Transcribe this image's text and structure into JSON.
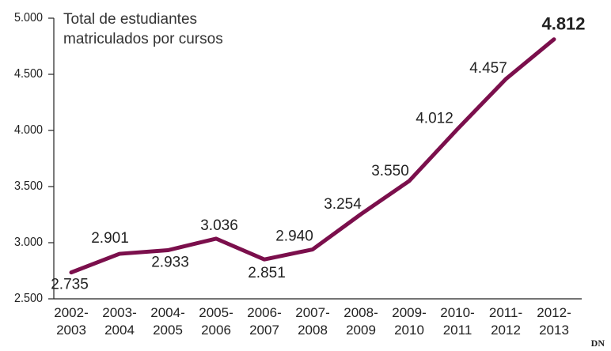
{
  "chart_data": {
    "type": "line",
    "subtitle": "Total de estudiantes\nmatriculados por cursos",
    "credit": "DN",
    "categories": [
      "2002-\n2003",
      "2003-\n2004",
      "2004-\n2005",
      "2005-\n2006",
      "2006-\n2007",
      "2007-\n2008",
      "2008-\n2009",
      "2009-\n2010",
      "2010-\n2011",
      "2011-\n2012",
      "2012-\n2013"
    ],
    "series": [
      {
        "name": "Total de estudiantes matriculados",
        "color": "#7b0f4c",
        "values": [
          2735,
          2901,
          2933,
          3036,
          2851,
          2940,
          3254,
          3550,
          4012,
          4457,
          4812
        ],
        "value_labels": [
          "2.735",
          "2.901",
          "2.933",
          "3.036",
          "2.851",
          "2.940",
          "3.254",
          "3.550",
          "4.012",
          "4.457",
          "4.812"
        ]
      }
    ],
    "ylim": [
      2500,
      5000
    ],
    "yticks": [
      {
        "value": 2500,
        "label": "2.500"
      },
      {
        "value": 3000,
        "label": "3.000"
      },
      {
        "value": 3500,
        "label": "3.500"
      },
      {
        "value": 4000,
        "label": "4.000"
      },
      {
        "value": 4500,
        "label": "4.500"
      },
      {
        "value": 5000,
        "label": "5.000"
      }
    ]
  }
}
